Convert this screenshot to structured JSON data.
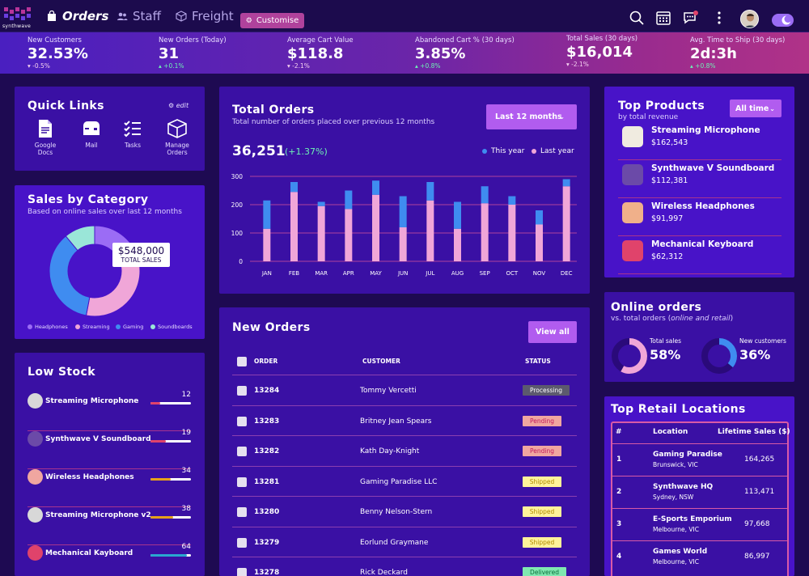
{
  "brand": {
    "name": "synthwave"
  },
  "nav": {
    "orders": "Orders",
    "staff": "Staff",
    "freight": "Freight",
    "customise": "Customise"
  },
  "kpis": [
    {
      "label": "New Customers",
      "value": "32.53%",
      "change": "-0.5%",
      "dir": "down"
    },
    {
      "label": "New Orders (Today)",
      "value": "31",
      "change": "+0.1%",
      "dir": "up"
    },
    {
      "label": "Average Cart Value",
      "value": "$118.8",
      "change": "-2.1%",
      "dir": "down"
    },
    {
      "label": "Abandoned Cart % (30 days)",
      "value": "3.85%",
      "change": "+0.8%",
      "dir": "up"
    },
    {
      "label": "Total Sales (30 days)",
      "value": "$16,014",
      "change": "-2.1%",
      "dir": "down"
    },
    {
      "label": "Avg. Time to Ship (30 days)",
      "value": "2d:3h",
      "change": "+0.8%",
      "dir": "up"
    }
  ],
  "quick_links": {
    "title": "Quick Links",
    "edit": "edit",
    "items": [
      "Google Docs",
      "Mail",
      "Tasks",
      "Manage Orders"
    ]
  },
  "sales_by_category": {
    "title": "Sales by Category",
    "subtitle": "Based on online sales over last 12 months",
    "callout_value": "$548,000",
    "callout_label": "TOTAL SALES",
    "slices": [
      {
        "name": "Headphones",
        "value": 22,
        "color": "#9b6cf5"
      },
      {
        "name": "Streaming",
        "value": 31,
        "color": "#f0a6d8"
      },
      {
        "name": "Gaming",
        "value": 36,
        "color": "#3f8cf0"
      },
      {
        "name": "Soundboards",
        "value": 11,
        "color": "#9ae6d8"
      }
    ]
  },
  "low_stock": {
    "title": "Low Stock",
    "items": [
      {
        "name": "Streaming Microphone",
        "qty": "12",
        "level": 0.24,
        "color": "#e0436b"
      },
      {
        "name": "Synthwave V Soundboard",
        "qty": "19",
        "level": 0.38,
        "color": "#e0436b"
      },
      {
        "name": "Wireless Headphones",
        "qty": "34",
        "level": 0.5,
        "color": "#e6a11b"
      },
      {
        "name": "Streaming Microphone v2",
        "qty": "38",
        "level": 0.55,
        "color": "#e6a11b"
      },
      {
        "name": "Mechanical Kayboard",
        "qty": "64",
        "level": 0.9,
        "color": "#2aa7d0"
      }
    ]
  },
  "total_orders": {
    "title": "Total Orders",
    "subtitle": "Total number of orders placed over previous 12 months",
    "range": "Last 12 months",
    "total": "36,251",
    "change": "(+1.37%)",
    "legend_this": "This year",
    "legend_last": "Last year"
  },
  "chart_data": {
    "type": "bar",
    "stacked": true,
    "categories": [
      "JAN",
      "FEB",
      "MAR",
      "APR",
      "MAY",
      "JUN",
      "JUL",
      "AUG",
      "SEP",
      "OCT",
      "NOV",
      "DEC"
    ],
    "series": [
      {
        "name": "Last year",
        "color": "#f0a6d8",
        "values": [
          115,
          245,
          195,
          185,
          235,
          120,
          215,
          115,
          205,
          200,
          130,
          265
        ]
      },
      {
        "name": "This year",
        "color": "#3f8cf0",
        "values": [
          100,
          35,
          15,
          65,
          50,
          110,
          65,
          95,
          60,
          30,
          50,
          25
        ]
      }
    ],
    "yticks": [
      0,
      100,
      200,
      300
    ],
    "ylim": [
      0,
      300
    ]
  },
  "new_orders": {
    "title": "New Orders",
    "view_all": "View all",
    "headers": [
      "ORDER",
      "CUSTOMER",
      "STATUS"
    ],
    "rows": [
      {
        "id": "13284",
        "customer": "Tommy Vercetti",
        "status": "Processing"
      },
      {
        "id": "13283",
        "customer": "Britney Jean Spears",
        "status": "Pending"
      },
      {
        "id": "13282",
        "customer": "Kath Day-Knight",
        "status": "Pending"
      },
      {
        "id": "13281",
        "customer": "Gaming Paradise LLC",
        "status": "Shipped"
      },
      {
        "id": "13280",
        "customer": "Benny Nelson-Stern",
        "status": "Shipped"
      },
      {
        "id": "13279",
        "customer": "Eorlund Graymane",
        "status": "Shipped"
      },
      {
        "id": "13278",
        "customer": "Rick Deckard",
        "status": "Delivered"
      }
    ]
  },
  "top_products": {
    "title": "Top Products",
    "subtitle": "by total revenue",
    "filter": "All time",
    "items": [
      {
        "name": "Streaming Microphone",
        "revenue": "$162,543"
      },
      {
        "name": "Synthwave V Soundboard",
        "revenue": "$112,381"
      },
      {
        "name": "Wireless Headphones",
        "revenue": "$91,997"
      },
      {
        "name": "Mechanical Keyboard",
        "revenue": "$62,312"
      }
    ]
  },
  "online_orders": {
    "title": "Online orders",
    "subtitle_pre": "vs. total orders (",
    "subtitle_em": "online and retail",
    "subtitle_post": ")",
    "total_sales_label": "Total sales",
    "total_sales": "58%",
    "total_sales_frac": 0.58,
    "new_customers_label": "New customers",
    "new_customers": "36%",
    "new_customers_frac": 0.36
  },
  "top_retail": {
    "title": "Top Retail Locations",
    "headers": [
      "#",
      "Location",
      "Lifetime Sales ($)"
    ],
    "rows": [
      {
        "rank": "1",
        "name": "Gaming Paradise",
        "city": "Brunswick, VIC",
        "sales": "164,265"
      },
      {
        "rank": "2",
        "name": "Synthwave HQ",
        "city": "Sydney, NSW",
        "sales": "113,471"
      },
      {
        "rank": "3",
        "name": "E-Sports Emporium",
        "city": "Melbourne, VIC",
        "sales": "97,668"
      },
      {
        "rank": "4",
        "name": "Games World",
        "city": "Melbourne, VIC",
        "sales": "86,997"
      }
    ]
  }
}
